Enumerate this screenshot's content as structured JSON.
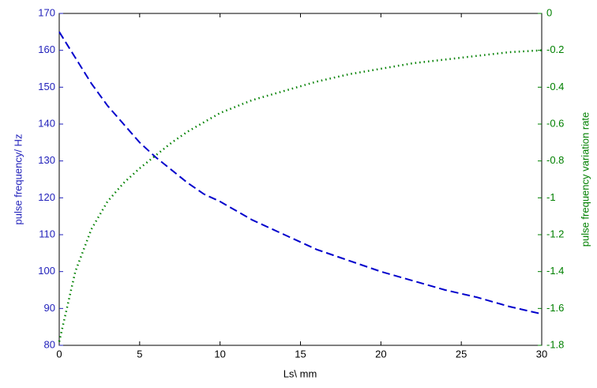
{
  "chart_data": {
    "type": "line",
    "xlabel": "Ls\\ mm",
    "ylabel": "pulse frequency/ Hz",
    "y2label": "pulse frequency variation rate",
    "x": [
      0,
      1,
      2,
      3,
      4,
      5,
      6,
      7,
      8,
      9,
      10,
      12,
      14,
      16,
      18,
      20,
      22,
      24,
      26,
      28,
      30
    ],
    "series": [
      {
        "name": "pulse frequency",
        "color": "#0000cc",
        "style": "dashed",
        "axis": "y",
        "values": [
          165,
          158,
          151,
          145,
          140,
          135,
          131,
          127.5,
          124,
          121,
          119,
          114,
          110,
          106,
          103,
          100,
          97.5,
          95,
          93,
          90.5,
          88.5
        ]
      },
      {
        "name": "pulse frequency variation rate",
        "color": "#008000",
        "style": "dotted",
        "axis": "y2",
        "values": [
          -1.78,
          -1.4,
          -1.17,
          -1.02,
          -0.92,
          -0.84,
          -0.77,
          -0.7,
          -0.64,
          -0.59,
          -0.54,
          -0.47,
          -0.42,
          -0.37,
          -0.33,
          -0.3,
          -0.27,
          -0.25,
          -0.23,
          -0.21,
          -0.2
        ]
      }
    ],
    "xlim": [
      0,
      30
    ],
    "xticks": [
      0,
      5,
      10,
      15,
      20,
      25,
      30
    ],
    "ylim": [
      80,
      170
    ],
    "yticks": [
      80,
      90,
      100,
      110,
      120,
      130,
      140,
      150,
      160,
      170
    ],
    "y2lim": [
      -1.8,
      0
    ],
    "y2ticks": [
      -1.8,
      -1.6,
      -1.4,
      -1.2,
      -1,
      -0.8,
      -0.6,
      -0.4,
      -0.2,
      0
    ],
    "ycolor": "#2222bb",
    "y2color": "#008000"
  }
}
